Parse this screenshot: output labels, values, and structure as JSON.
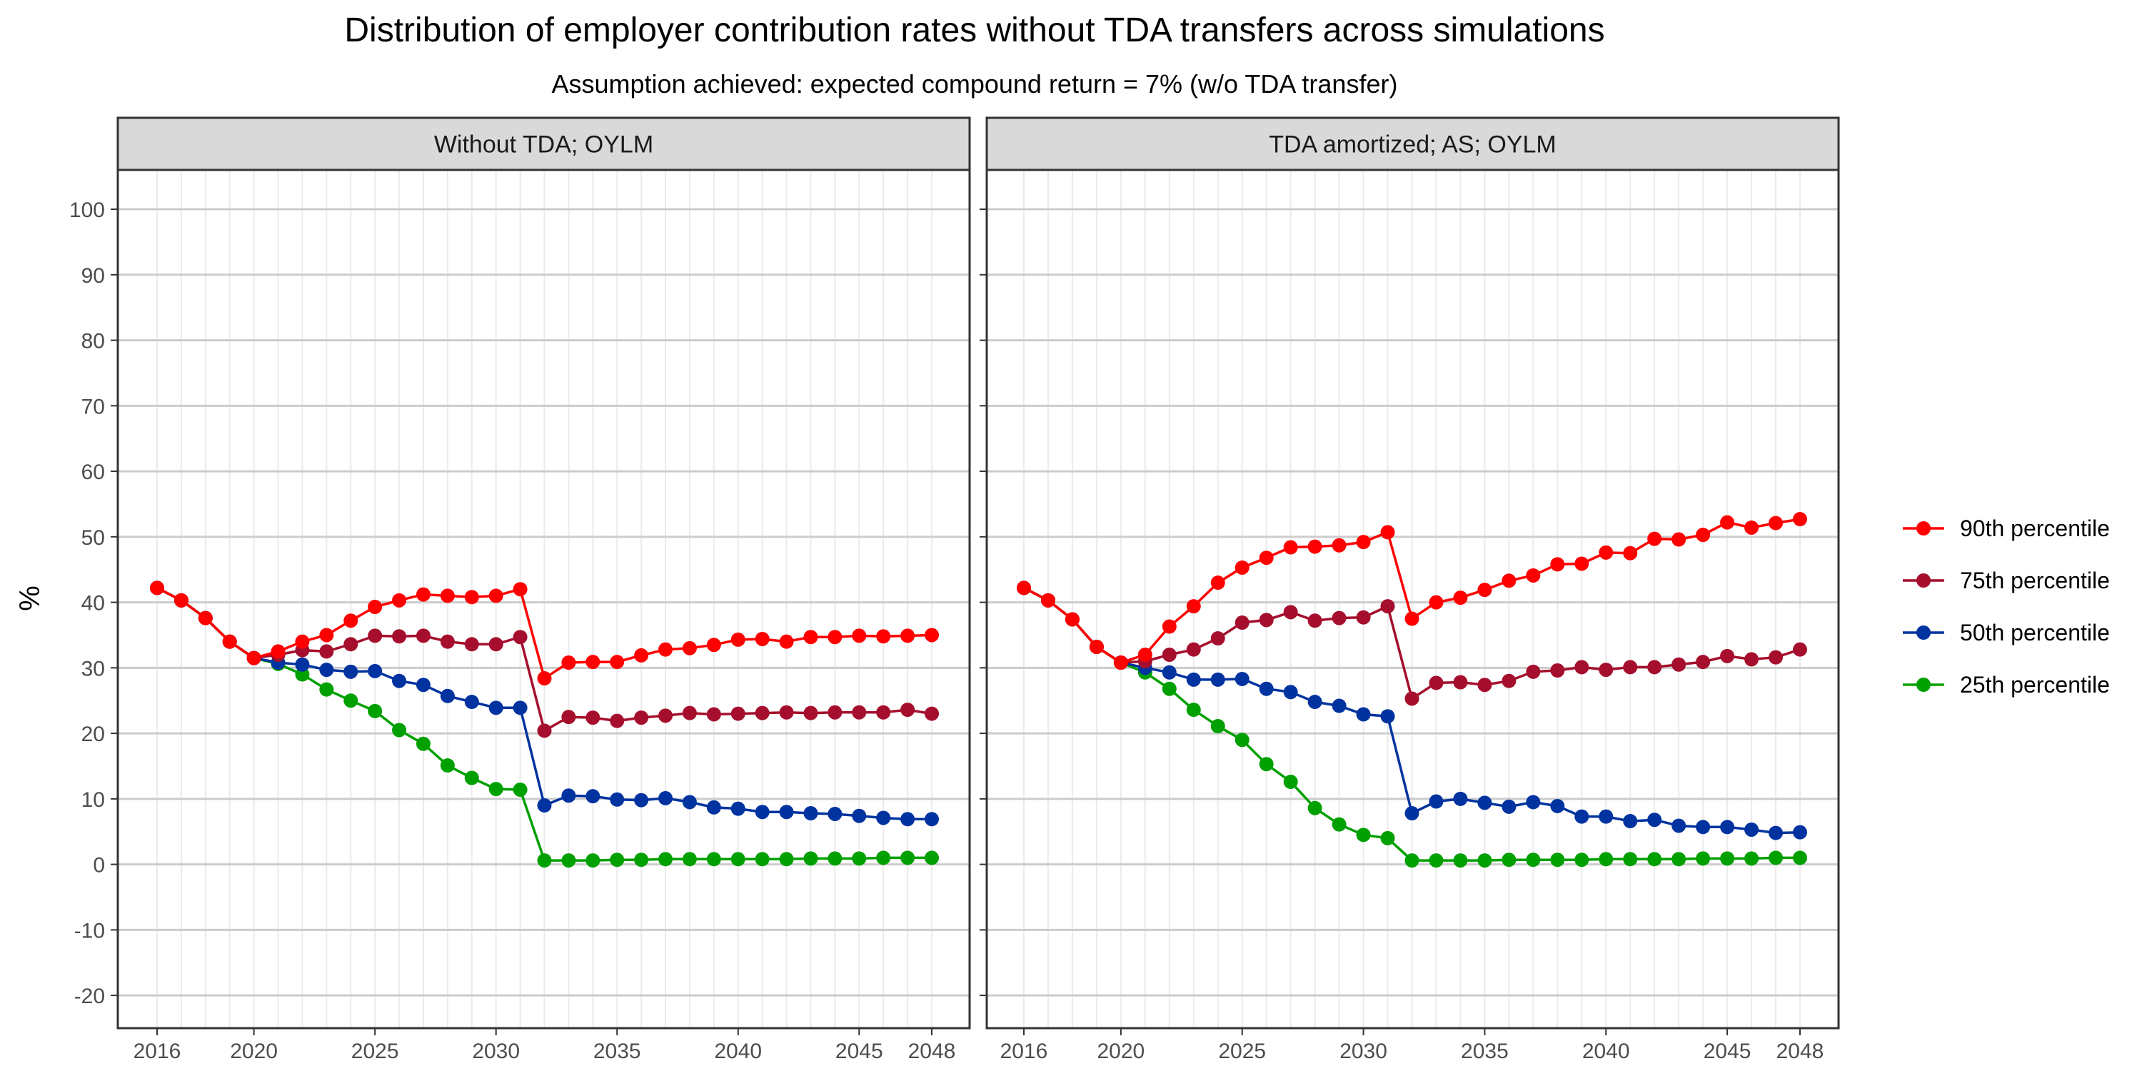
{
  "title": "Distribution of employer contribution rates without TDA transfers across simulations",
  "subtitle": "Assumption achieved: expected compound return = 7% (w/o TDA transfer)",
  "chart_data": {
    "type": "line",
    "ylabel": "%",
    "xlabel": "",
    "xlim": [
      2016,
      2048
    ],
    "ylim": [
      -25,
      106
    ],
    "x_ticks": [
      2016,
      2020,
      2025,
      2030,
      2035,
      2040,
      2045,
      2048
    ],
    "y_ticks": [
      -20,
      -10,
      0,
      10,
      20,
      30,
      40,
      50,
      60,
      70,
      80,
      90,
      100
    ],
    "legend_position": "right",
    "grid": true,
    "x": [
      2016,
      2017,
      2018,
      2019,
      2020,
      2021,
      2022,
      2023,
      2024,
      2025,
      2026,
      2027,
      2028,
      2029,
      2030,
      2031,
      2032,
      2033,
      2034,
      2035,
      2036,
      2037,
      2038,
      2039,
      2040,
      2041,
      2042,
      2043,
      2044,
      2045,
      2046,
      2047,
      2048
    ],
    "series_meta": [
      {
        "key": "p90",
        "name": "90th percentile",
        "color": "#ff0000"
      },
      {
        "key": "p75",
        "name": "75th percentile",
        "color": "#a50f2d"
      },
      {
        "key": "p50",
        "name": "50th percentile",
        "color": "#0033a0"
      },
      {
        "key": "p25",
        "name": "25th percentile",
        "color": "#00a000"
      }
    ],
    "panels": [
      {
        "label": "Without TDA; OYLM",
        "series": {
          "p90": [
            42.2,
            40.3,
            37.6,
            34.0,
            31.5,
            32.5,
            34.0,
            35.0,
            37.2,
            39.3,
            40.3,
            41.2,
            41.0,
            40.8,
            41.0,
            42.0,
            28.4,
            30.8,
            30.9,
            30.9,
            31.9,
            32.8,
            33.0,
            33.5,
            34.3,
            34.4,
            34.0,
            34.7,
            34.7,
            34.9,
            34.8,
            34.9,
            35.0
          ],
          "p75": [
            42.2,
            40.3,
            37.6,
            34.0,
            31.5,
            32.0,
            32.7,
            32.5,
            33.6,
            34.9,
            34.8,
            34.9,
            34.0,
            33.6,
            33.6,
            34.7,
            20.4,
            22.5,
            22.4,
            21.9,
            22.4,
            22.7,
            23.1,
            22.9,
            23.0,
            23.1,
            23.2,
            23.1,
            23.2,
            23.2,
            23.2,
            23.6,
            23.0
          ],
          "p50": [
            42.2,
            40.3,
            37.6,
            34.0,
            31.5,
            30.8,
            30.5,
            29.7,
            29.4,
            29.5,
            28.0,
            27.4,
            25.7,
            24.8,
            23.9,
            23.9,
            9.0,
            10.5,
            10.4,
            9.9,
            9.8,
            10.1,
            9.5,
            8.7,
            8.5,
            8.0,
            8.0,
            7.8,
            7.7,
            7.4,
            7.1,
            6.9,
            6.9
          ],
          "p25": [
            42.2,
            40.3,
            37.6,
            34.0,
            31.5,
            30.6,
            29.0,
            26.7,
            25.0,
            23.4,
            20.5,
            18.4,
            15.1,
            13.2,
            11.5,
            11.4,
            0.6,
            0.6,
            0.6,
            0.7,
            0.7,
            0.8,
            0.8,
            0.8,
            0.8,
            0.8,
            0.8,
            0.9,
            0.9,
            0.9,
            1.0,
            1.0,
            1.0
          ]
        }
      },
      {
        "label": "TDA amortized; AS; OYLM",
        "series": {
          "p90": [
            42.2,
            40.3,
            37.4,
            33.2,
            30.8,
            32.0,
            36.3,
            39.4,
            43.0,
            45.3,
            46.8,
            48.4,
            48.5,
            48.7,
            49.2,
            50.7,
            37.5,
            40.0,
            40.7,
            41.9,
            43.3,
            44.1,
            45.8,
            45.9,
            47.6,
            47.5,
            49.7,
            49.6,
            50.3,
            52.2,
            51.4,
            52.1,
            52.7
          ],
          "p75": [
            42.2,
            40.3,
            37.4,
            33.2,
            30.8,
            31.0,
            32.0,
            32.8,
            34.5,
            36.9,
            37.3,
            38.5,
            37.2,
            37.6,
            37.7,
            39.4,
            25.3,
            27.7,
            27.8,
            27.4,
            28.0,
            29.4,
            29.6,
            30.1,
            29.7,
            30.1,
            30.1,
            30.5,
            30.9,
            31.8,
            31.3,
            31.6,
            32.8
          ],
          "p50": [
            42.2,
            40.3,
            37.4,
            33.2,
            30.8,
            30.0,
            29.3,
            28.2,
            28.2,
            28.3,
            26.8,
            26.3,
            24.8,
            24.2,
            22.9,
            22.6,
            7.8,
            9.6,
            10.0,
            9.4,
            8.8,
            9.5,
            8.9,
            7.3,
            7.3,
            6.6,
            6.8,
            5.9,
            5.7,
            5.7,
            5.3,
            4.8,
            4.9
          ],
          "p25": [
            42.2,
            40.3,
            37.4,
            33.2,
            30.8,
            29.3,
            26.8,
            23.6,
            21.1,
            19.0,
            15.3,
            12.6,
            8.6,
            6.1,
            4.5,
            4.0,
            0.6,
            0.6,
            0.6,
            0.6,
            0.7,
            0.7,
            0.7,
            0.7,
            0.8,
            0.8,
            0.8,
            0.8,
            0.9,
            0.9,
            0.9,
            1.0,
            1.0
          ]
        }
      }
    ]
  }
}
